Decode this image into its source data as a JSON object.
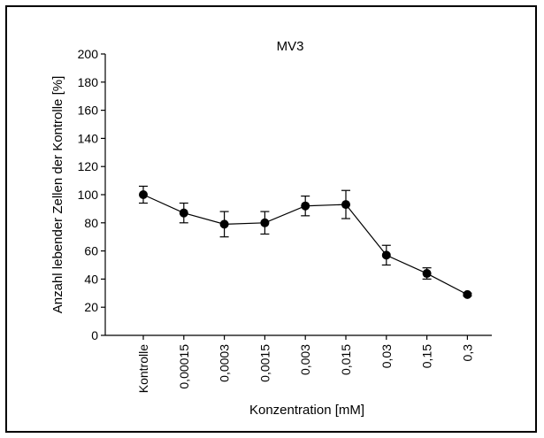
{
  "chart_data": {
    "type": "line",
    "title": "MV3",
    "xlabel": "Konzentration [mM]",
    "ylabel": "Anzahl lebender Zellen  der Kontrolle [%]",
    "categories": [
      "Kontrolle",
      "0,00015",
      "0,0003",
      "0,0015",
      "0,003",
      "0,015",
      "0,03",
      "0,15",
      "0,3"
    ],
    "series": [
      {
        "values": [
          100,
          87,
          79,
          80,
          92,
          93,
          57,
          44,
          29
        ],
        "error": [
          6,
          7,
          9,
          8,
          7,
          10,
          7,
          4,
          1
        ]
      }
    ],
    "ylim": [
      0,
      200
    ],
    "yticks": [
      0,
      20,
      40,
      60,
      80,
      100,
      120,
      140,
      160,
      180,
      200
    ],
    "grid": false,
    "colors": {
      "line": "#000000",
      "marker": "#000000"
    }
  }
}
